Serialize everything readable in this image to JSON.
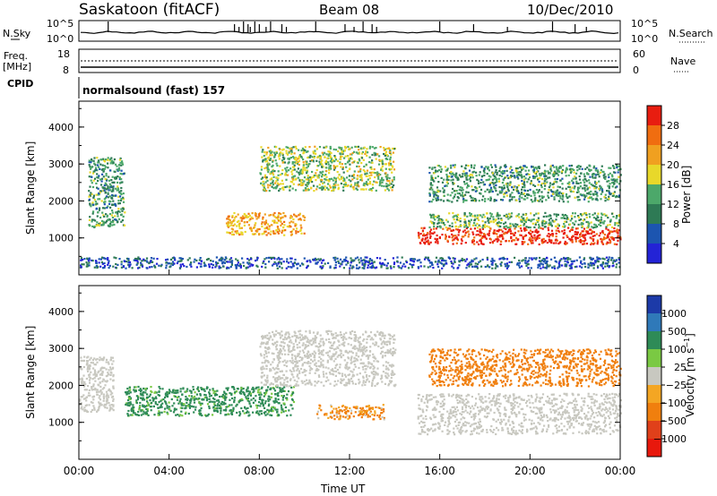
{
  "header": {
    "station": "Saskatoon (fitACF)",
    "beam": "Beam 08",
    "date": "10/Dec/2010"
  },
  "panels": {
    "nsky": {
      "label": "N.Sky",
      "tick_top": "10^5",
      "tick_bottom": "10^0",
      "right_label": "N.Search",
      "right_tick_top": "10^5",
      "right_tick_bottom": "10^0"
    },
    "freq": {
      "label_line1": "Freq.",
      "label_line2": "[MHz]",
      "tick_top": "18",
      "tick_bottom": "8",
      "right_label": "Nave",
      "right_tick_top": "60",
      "right_tick_bottom": "0"
    },
    "cpid": {
      "label": "CPID",
      "text": "normalsound (fast) 157"
    }
  },
  "colors": {
    "power": [
      "#2323d6",
      "#1c55b0",
      "#2e7a55",
      "#4ca86a",
      "#e8d82a",
      "#f0a020",
      "#f06d10",
      "#e81d10"
    ],
    "velocity": [
      "#1c3aa8",
      "#2f79b9",
      "#2e8b57",
      "#7ac943",
      "#c8c8c0",
      "#f4a623",
      "#f07f0e",
      "#e0401a",
      "#e8180c"
    ]
  },
  "chart_data": [
    {
      "type": "heatmap",
      "title": "",
      "xlabel": "Time UT",
      "ylabel": "Slant Range [km]",
      "x_ticks": [
        "00:00",
        "04:00",
        "08:00",
        "12:00",
        "16:00",
        "20:00",
        "00:00"
      ],
      "y_ticks": [
        "1000",
        "2000",
        "3000",
        "4000"
      ],
      "ylim": [
        0,
        4700
      ],
      "colorbar": {
        "label": "Power [dB]",
        "ticks": [
          "4",
          "8",
          "12",
          "16",
          "20",
          "24",
          "28"
        ]
      },
      "features": [
        {
          "t_start": 0.4,
          "t_end": 2.0,
          "range_start": 1300,
          "range_end": 3200,
          "power_db": 12
        },
        {
          "t_start": 0.0,
          "t_end": 24.0,
          "range_start": 200,
          "range_end": 500,
          "power_db": 6
        },
        {
          "t_start": 6.5,
          "t_end": 10.0,
          "range_start": 1100,
          "range_end": 1700,
          "power_db": 22
        },
        {
          "t_start": 8.0,
          "t_end": 14.0,
          "range_start": 2300,
          "range_end": 3500,
          "power_db": 16
        },
        {
          "t_start": 15.0,
          "t_end": 24.0,
          "range_start": 850,
          "range_end": 1300,
          "power_db": 30
        },
        {
          "t_start": 15.5,
          "t_end": 24.0,
          "range_start": 1300,
          "range_end": 1700,
          "power_db": 14
        },
        {
          "t_start": 15.5,
          "t_end": 24.0,
          "range_start": 2000,
          "range_end": 3000,
          "power_db": 12
        }
      ]
    },
    {
      "type": "heatmap",
      "title": "",
      "xlabel": "Time UT",
      "ylabel": "Slant Range [km]",
      "x_ticks": [
        "00:00",
        "04:00",
        "08:00",
        "12:00",
        "16:00",
        "20:00",
        "00:00"
      ],
      "y_ticks": [
        "1000",
        "2000",
        "3000",
        "4000"
      ],
      "ylim": [
        0,
        4700
      ],
      "colorbar": {
        "label": "Velocity [m s^-1]",
        "ticks": [
          "1000",
          "500",
          "100",
          "25",
          "−25",
          "−100",
          "−500",
          "−1000"
        ]
      },
      "features": [
        {
          "t_start": 0.0,
          "t_end": 1.5,
          "range_start": 1300,
          "range_end": 2800,
          "velocity": 0
        },
        {
          "t_start": 2.0,
          "t_end": 9.5,
          "range_start": 1200,
          "range_end": 2000,
          "velocity": 200
        },
        {
          "t_start": 8.0,
          "t_end": 14.0,
          "range_start": 2000,
          "range_end": 3500,
          "velocity": 0
        },
        {
          "t_start": 10.5,
          "t_end": 13.5,
          "range_start": 1100,
          "range_end": 1500,
          "velocity": -150
        },
        {
          "t_start": 15.0,
          "t_end": 24.0,
          "range_start": 700,
          "range_end": 1800,
          "velocity": 0
        },
        {
          "t_start": 15.5,
          "t_end": 24.0,
          "range_start": 2000,
          "range_end": 3000,
          "velocity": -300
        }
      ]
    }
  ]
}
